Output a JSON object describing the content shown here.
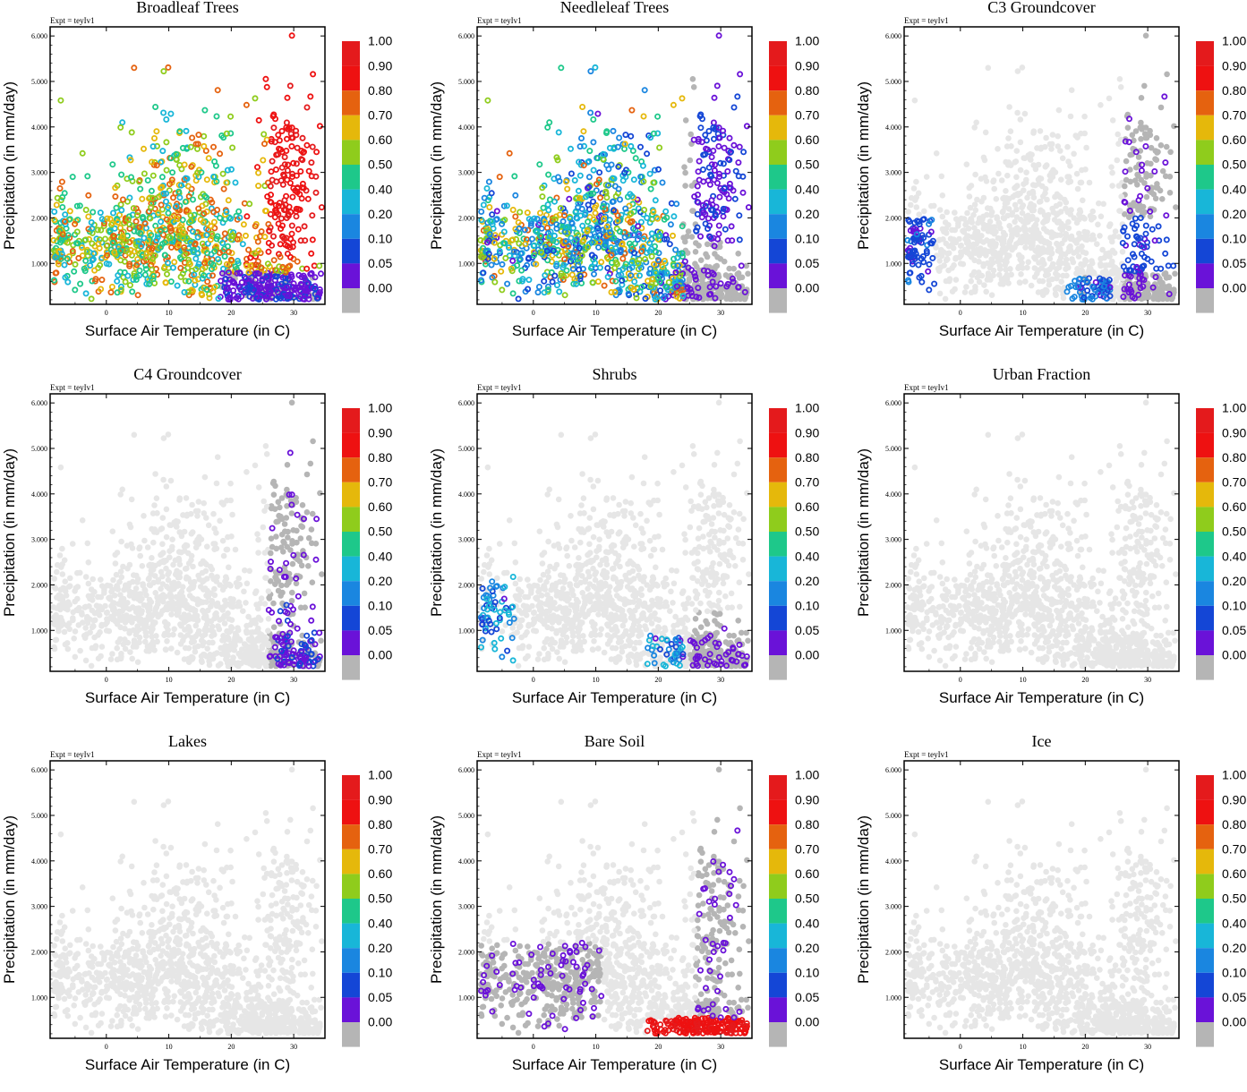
{
  "figure": {
    "experiment_label": "Expt = teyIv1",
    "xlabel": "Surface Air Temperature (in C)",
    "ylabel": "Precipitation (in mm/day)"
  },
  "colorbar": {
    "labels": [
      "1.00",
      "0.90",
      "0.80",
      "0.70",
      "0.60",
      "0.50",
      "0.40",
      "0.20",
      "0.10",
      "0.05",
      "0.00"
    ],
    "colors": [
      "#e41a1c",
      "#ee1111",
      "#e5620f",
      "#e5b80b",
      "#8fcc1c",
      "#1ec88a",
      "#18b6d8",
      "#1a86e0",
      "#1446d6",
      "#6a12d8",
      "#b5b5b5"
    ]
  },
  "chart_data": [
    {
      "type": "scatter",
      "title": "Broadleaf Trees",
      "xlabel": "Surface Air Temperature (in C)",
      "ylabel": "Precipitation (in mm/day)",
      "xlim": [
        -9,
        35
      ],
      "ylim": [
        0.1,
        6.2
      ],
      "xticks": [
        "0",
        "10",
        "20",
        "30"
      ],
      "yticks": [
        "1.000",
        "2.000",
        "3.000",
        "4.000",
        "5.000",
        "6.000"
      ],
      "colorbar_range": [
        0.0,
        1.0
      ],
      "pattern": "broadleaf"
    },
    {
      "type": "scatter",
      "title": "Needleleaf Trees",
      "xlabel": "Surface Air Temperature (in C)",
      "ylabel": "Precipitation (in mm/day)",
      "xlim": [
        -9,
        35
      ],
      "ylim": [
        0.1,
        6.2
      ],
      "xticks": [
        "0",
        "10",
        "20",
        "30"
      ],
      "yticks": [
        "1.000",
        "2.000",
        "3.000",
        "4.000",
        "5.000",
        "6.000"
      ],
      "colorbar_range": [
        0.0,
        1.0
      ],
      "pattern": "needleleaf"
    },
    {
      "type": "scatter",
      "title": "C3 Groundcover",
      "xlabel": "Surface Air Temperature (in C)",
      "ylabel": "Precipitation (in mm/day)",
      "xlim": [
        -9,
        35
      ],
      "ylim": [
        0.1,
        6.2
      ],
      "xticks": [
        "0",
        "10",
        "20",
        "30"
      ],
      "yticks": [
        "1.000",
        "2.000",
        "3.000",
        "4.000",
        "5.000",
        "6.000"
      ],
      "colorbar_range": [
        0.0,
        1.0
      ],
      "pattern": "c3"
    },
    {
      "type": "scatter",
      "title": "C4 Groundcover",
      "xlabel": "Surface Air Temperature (in C)",
      "ylabel": "Precipitation (in mm/day)",
      "xlim": [
        -9,
        35
      ],
      "ylim": [
        0.1,
        6.2
      ],
      "xticks": [
        "0",
        "10",
        "20",
        "30"
      ],
      "yticks": [
        "1.000",
        "2.000",
        "3.000",
        "4.000",
        "5.000",
        "6.000"
      ],
      "colorbar_range": [
        0.0,
        1.0
      ],
      "pattern": "c4"
    },
    {
      "type": "scatter",
      "title": "Shrubs",
      "xlabel": "Surface Air Temperature (in C)",
      "ylabel": "Precipitation (in mm/day)",
      "xlim": [
        -9,
        35
      ],
      "ylim": [
        0.1,
        6.2
      ],
      "xticks": [
        "0",
        "10",
        "20",
        "30"
      ],
      "yticks": [
        "1.000",
        "2.000",
        "3.000",
        "4.000",
        "5.000",
        "6.000"
      ],
      "colorbar_range": [
        0.0,
        1.0
      ],
      "pattern": "shrubs"
    },
    {
      "type": "scatter",
      "title": "Urban Fraction",
      "xlabel": "Surface Air Temperature (in C)",
      "ylabel": "Precipitation (in mm/day)",
      "xlim": [
        -9,
        35
      ],
      "ylim": [
        0.1,
        6.2
      ],
      "xticks": [
        "0",
        "10",
        "20",
        "30"
      ],
      "yticks": [
        "1.000",
        "2.000",
        "3.000",
        "4.000",
        "5.000",
        "6.000"
      ],
      "colorbar_range": [
        0.0,
        1.0
      ],
      "pattern": "none"
    },
    {
      "type": "scatter",
      "title": "Lakes",
      "xlabel": "Surface Air Temperature (in C)",
      "ylabel": "Precipitation (in mm/day)",
      "xlim": [
        -9,
        35
      ],
      "ylim": [
        0.1,
        6.2
      ],
      "xticks": [
        "0",
        "10",
        "20",
        "30"
      ],
      "yticks": [
        "1.000",
        "2.000",
        "3.000",
        "4.000",
        "5.000",
        "6.000"
      ],
      "colorbar_range": [
        0.0,
        1.0
      ],
      "pattern": "none"
    },
    {
      "type": "scatter",
      "title": "Bare Soil",
      "xlabel": "Surface Air Temperature (in C)",
      "ylabel": "Precipitation (in mm/day)",
      "xlim": [
        -9,
        35
      ],
      "ylim": [
        0.1,
        6.2
      ],
      "xticks": [
        "0",
        "10",
        "20",
        "30"
      ],
      "yticks": [
        "1.000",
        "2.000",
        "3.000",
        "4.000",
        "5.000",
        "6.000"
      ],
      "colorbar_range": [
        0.0,
        1.0
      ],
      "pattern": "baresoil"
    },
    {
      "type": "scatter",
      "title": "Ice",
      "xlabel": "Surface Air Temperature (in C)",
      "ylabel": "Precipitation (in mm/day)",
      "xlim": [
        -9,
        35
      ],
      "ylim": [
        0.1,
        6.2
      ],
      "xticks": [
        "0",
        "10",
        "20",
        "30"
      ],
      "yticks": [
        "1.000",
        "2.000",
        "3.000",
        "4.000",
        "5.000",
        "6.000"
      ],
      "colorbar_range": [
        0.0,
        1.0
      ],
      "pattern": "none"
    }
  ]
}
